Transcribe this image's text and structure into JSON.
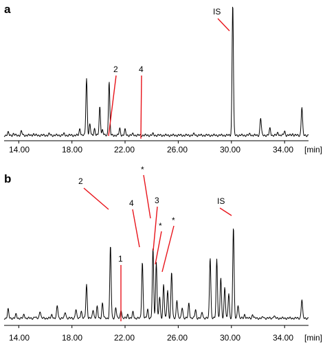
{
  "chart_data": [
    {
      "type": "line",
      "panel_label": "a",
      "x_unit": "[min]",
      "xlim": [
        12.9,
        35.8
      ],
      "ylim": [
        0,
        100
      ],
      "x_ticks": [
        "14.00",
        "18.00",
        "22.00",
        "26.00",
        "30.00",
        "34.00"
      ],
      "baseline": 2,
      "peaks": [
        {
          "x": 13.2,
          "y": 4
        },
        {
          "x": 13.6,
          "y": 3
        },
        {
          "x": 14.2,
          "y": 5
        },
        {
          "x": 15.1,
          "y": 3
        },
        {
          "x": 16.3,
          "y": 3
        },
        {
          "x": 17.4,
          "y": 3
        },
        {
          "x": 18.6,
          "y": 7
        },
        {
          "x": 19.1,
          "y": 44
        },
        {
          "x": 19.35,
          "y": 10
        },
        {
          "x": 19.7,
          "y": 7
        },
        {
          "x": 20.1,
          "y": 23
        },
        {
          "x": 20.3,
          "y": 6
        },
        {
          "x": 20.8,
          "y": 42
        },
        {
          "x": 21.6,
          "y": 7
        },
        {
          "x": 22.0,
          "y": 6
        },
        {
          "x": 22.6,
          "y": 3
        },
        {
          "x": 24.1,
          "y": 3
        },
        {
          "x": 25.5,
          "y": 2
        },
        {
          "x": 27.2,
          "y": 3
        },
        {
          "x": 28.4,
          "y": 2
        },
        {
          "x": 30.1,
          "y": 100
        },
        {
          "x": 31.4,
          "y": 3
        },
        {
          "x": 32.2,
          "y": 15
        },
        {
          "x": 32.9,
          "y": 7
        },
        {
          "x": 33.5,
          "y": 4
        },
        {
          "x": 34.0,
          "y": 5
        },
        {
          "x": 34.6,
          "y": 3
        },
        {
          "x": 35.3,
          "y": 23
        }
      ],
      "annotations": [
        {
          "label": "IS",
          "x": 30.1
        },
        {
          "label": "2",
          "x": 20.9
        },
        {
          "label": "4",
          "x": 23.3
        }
      ]
    },
    {
      "type": "line",
      "panel_label": "b",
      "x_unit": "[min]",
      "xlim": [
        12.9,
        35.8
      ],
      "ylim": [
        0,
        100
      ],
      "x_ticks": [
        "14.00",
        "18.00",
        "22.00",
        "26.00",
        "30.00",
        "34.00"
      ],
      "baseline": 3,
      "peaks": [
        {
          "x": 13.2,
          "y": 10
        },
        {
          "x": 13.8,
          "y": 6
        },
        {
          "x": 14.4,
          "y": 6
        },
        {
          "x": 15.2,
          "y": 4
        },
        {
          "x": 15.6,
          "y": 9
        },
        {
          "x": 16.5,
          "y": 6
        },
        {
          "x": 16.9,
          "y": 13
        },
        {
          "x": 17.5,
          "y": 8
        },
        {
          "x": 18.3,
          "y": 10
        },
        {
          "x": 18.7,
          "y": 9
        },
        {
          "x": 19.1,
          "y": 30
        },
        {
          "x": 19.6,
          "y": 10
        },
        {
          "x": 19.9,
          "y": 12
        },
        {
          "x": 20.3,
          "y": 15
        },
        {
          "x": 20.9,
          "y": 61
        },
        {
          "x": 21.3,
          "y": 12
        },
        {
          "x": 21.7,
          "y": 10
        },
        {
          "x": 22.2,
          "y": 6
        },
        {
          "x": 22.6,
          "y": 8
        },
        {
          "x": 23.3,
          "y": 48
        },
        {
          "x": 23.7,
          "y": 10
        },
        {
          "x": 24.1,
          "y": 58
        },
        {
          "x": 24.35,
          "y": 48
        },
        {
          "x": 24.6,
          "y": 20
        },
        {
          "x": 24.9,
          "y": 30
        },
        {
          "x": 25.2,
          "y": 25
        },
        {
          "x": 25.5,
          "y": 40
        },
        {
          "x": 25.9,
          "y": 18
        },
        {
          "x": 26.3,
          "y": 12
        },
        {
          "x": 26.8,
          "y": 15
        },
        {
          "x": 27.3,
          "y": 10
        },
        {
          "x": 27.8,
          "y": 8
        },
        {
          "x": 28.4,
          "y": 52
        },
        {
          "x": 28.9,
          "y": 50
        },
        {
          "x": 29.2,
          "y": 35
        },
        {
          "x": 29.5,
          "y": 28
        },
        {
          "x": 29.8,
          "y": 22
        },
        {
          "x": 30.15,
          "y": 76
        },
        {
          "x": 30.5,
          "y": 14
        },
        {
          "x": 31.0,
          "y": 6
        },
        {
          "x": 31.6,
          "y": 6
        },
        {
          "x": 32.4,
          "y": 4
        },
        {
          "x": 33.2,
          "y": 5
        },
        {
          "x": 34.3,
          "y": 3
        },
        {
          "x": 35.3,
          "y": 18
        }
      ],
      "annotations": [
        {
          "label": "2",
          "x": 20.9
        },
        {
          "label": "1",
          "x": 22.0
        },
        {
          "label": "4",
          "x": 23.3
        },
        {
          "label": "*",
          "x": 24.1
        },
        {
          "label": "3",
          "x": 24.4
        },
        {
          "label": "*",
          "x": 24.7
        },
        {
          "label": "*",
          "x": 25.1
        },
        {
          "label": "IS",
          "x": 30.15
        }
      ]
    }
  ]
}
